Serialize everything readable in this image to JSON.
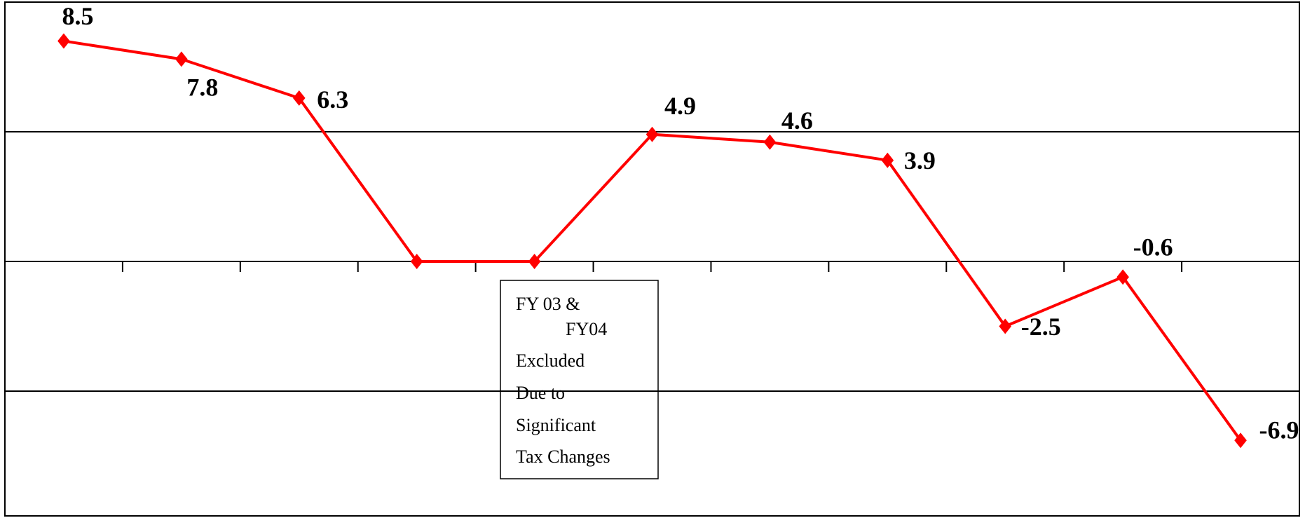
{
  "chart_data": {
    "type": "line",
    "categories": [
      null,
      null,
      null,
      null,
      null,
      null,
      null,
      null,
      null,
      null,
      null
    ],
    "series": [
      {
        "color": "#ff0000",
        "values": [
          8.5,
          7.8,
          6.3,
          0,
          0,
          4.9,
          4.6,
          3.9,
          -2.5,
          -0.6,
          -6.9
        ],
        "value_labels": [
          "8.5",
          "7.8",
          "6.3",
          null,
          null,
          "4.9",
          "4.6",
          "3.9",
          "-2.5",
          "-0.6",
          "-6.9"
        ]
      }
    ],
    "ylim": [
      -10,
      10
    ],
    "yticks": [
      -5,
      0,
      5
    ],
    "grid": true,
    "annotation": [
      "FY 03 &",
      "FY04",
      "Excluded",
      "Due to",
      "Significant",
      "Tax Changes"
    ]
  }
}
